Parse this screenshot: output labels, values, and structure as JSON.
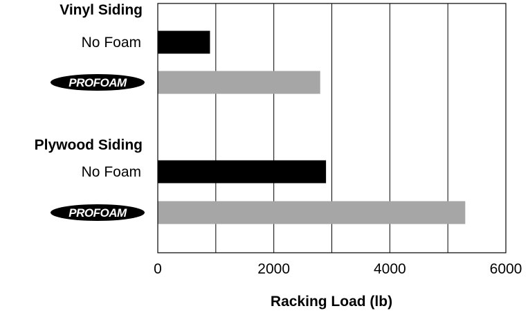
{
  "chart_data": {
    "type": "bar",
    "orientation": "horizontal",
    "xlabel": "Racking Load (lb)",
    "xlim": [
      0,
      6000
    ],
    "x_ticks": [
      "0",
      "2000",
      "4000",
      "6000"
    ],
    "grid": "vertical",
    "colors": {
      "no_foam": "#000000",
      "profoam": "#a6a6a6"
    },
    "groups": [
      {
        "label": "Vinyl Siding",
        "bars": [
          {
            "label": "No Foam",
            "value": 900,
            "kind": "no_foam"
          },
          {
            "label": "PROFOAM",
            "value": 2800,
            "kind": "profoam",
            "logo": true
          }
        ]
      },
      {
        "label": "Plywood Siding",
        "bars": [
          {
            "label": "No Foam",
            "value": 2900,
            "kind": "no_foam"
          },
          {
            "label": "PROFOAM",
            "value": 5300,
            "kind": "profoam",
            "logo": true
          }
        ]
      }
    ]
  }
}
